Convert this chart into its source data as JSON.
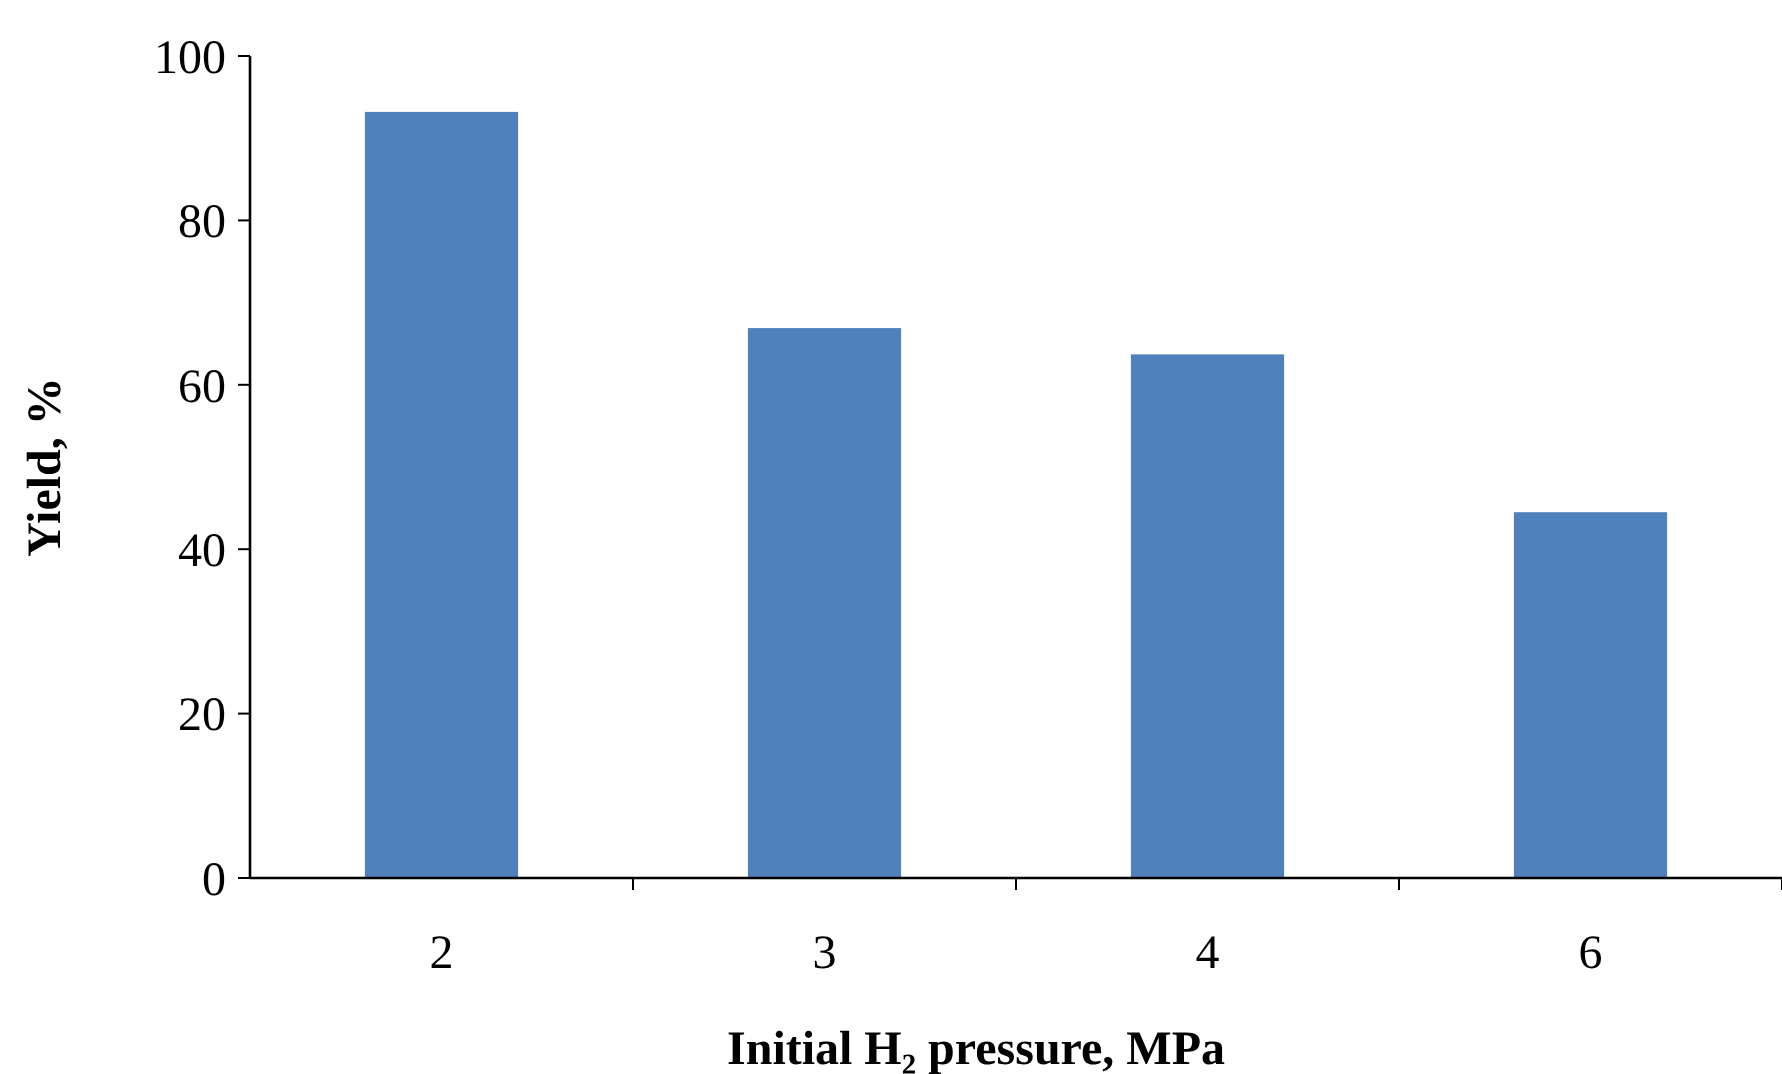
{
  "chart_data": {
    "type": "bar",
    "xlabel": "Initial H₂ pressure, MPa",
    "ylabel": "Yield, %",
    "categories": [
      "2",
      "3",
      "4",
      "6"
    ],
    "values": [
      93.2,
      66.9,
      63.7,
      44.5
    ],
    "color": "#4f81bd",
    "ylim": [
      0,
      100
    ],
    "yticks": [
      0,
      20,
      40,
      60,
      80,
      100
    ],
    "grid": false
  }
}
